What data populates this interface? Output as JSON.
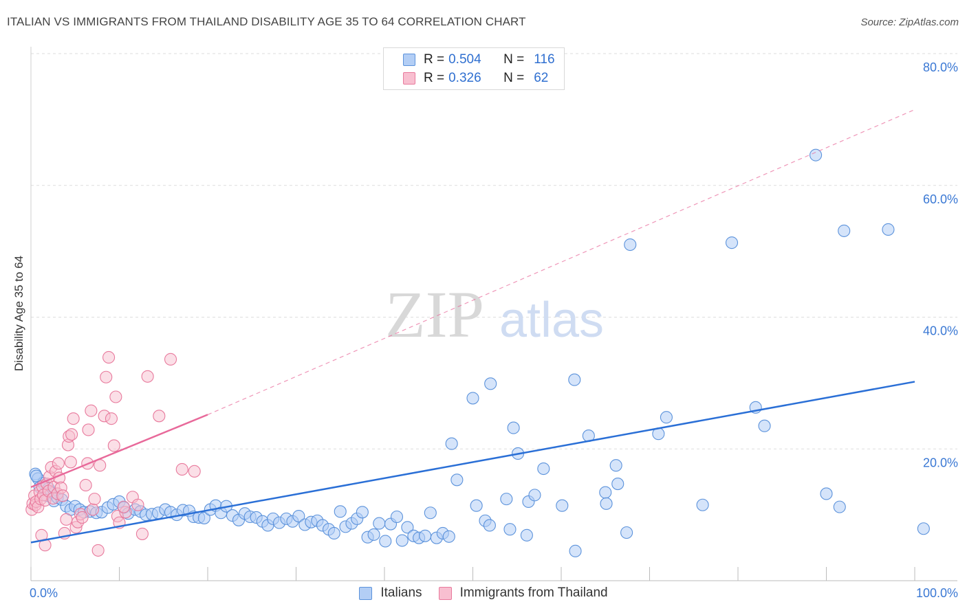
{
  "title": "ITALIAN VS IMMIGRANTS FROM THAILAND DISABILITY AGE 35 TO 64 CORRELATION CHART",
  "source": "Source: ZipAtlas.com",
  "watermark": {
    "zip": "ZIP",
    "atlas": "atlas"
  },
  "legend_stats": [
    {
      "r_label": "R =",
      "r_value": "0.504",
      "n_label": "N =",
      "n_value": "116"
    },
    {
      "r_label": "R =",
      "r_value": "0.326",
      "n_label": "N =",
      "n_value": "62"
    }
  ],
  "colors": {
    "italians_fill": "#b3cef5",
    "italians_stroke": "#5b92db",
    "italians_line": "#2a6fd6",
    "thai_fill": "#f8bfd0",
    "thai_stroke": "#e8799c",
    "thai_line": "#e8699a",
    "grid": "#dddddd",
    "tick_label": "#3a78d4"
  },
  "chart_data": {
    "type": "scatter",
    "title": "ITALIAN VS IMMIGRANTS FROM THAILAND DISABILITY AGE 35 TO 64 CORRELATION CHART",
    "xlabel": "",
    "ylabel": "Disability Age 35 to 64",
    "xlim": [
      0,
      100
    ],
    "ylim": [
      0,
      80
    ],
    "x_tick_labels": [
      "0.0%",
      "100.0%"
    ],
    "y_ticks": [
      20,
      40,
      60,
      80
    ],
    "y_tick_labels": [
      "20.0%",
      "40.0%",
      "60.0%",
      "80.0%"
    ],
    "grid": true,
    "legend_position": "top-center",
    "series": [
      {
        "name": "Italians",
        "trend": {
          "x0": 0,
          "y0": 5.8,
          "x1": 100,
          "y1": 30.2
        },
        "points": [
          [
            0.5,
            16.2
          ],
          [
            0.8,
            15.5
          ],
          [
            1,
            14.2
          ],
          [
            1.4,
            14.8
          ],
          [
            1.8,
            12.9
          ],
          [
            2,
            14.0
          ],
          [
            2.3,
            13.4
          ],
          [
            2.6,
            12.1
          ],
          [
            3,
            12.6
          ],
          [
            3.5,
            12.3
          ],
          [
            4,
            11.3
          ],
          [
            4.5,
            10.8
          ],
          [
            5,
            11.3
          ],
          [
            5.5,
            10.8
          ],
          [
            6,
            10.4
          ],
          [
            6.7,
            10.5
          ],
          [
            7.4,
            10.3
          ],
          [
            8,
            10.4
          ],
          [
            8.7,
            11.1
          ],
          [
            9.3,
            11.6
          ],
          [
            10,
            12.0
          ],
          [
            10.5,
            11.1
          ],
          [
            11,
            10.2
          ],
          [
            11.8,
            10.8
          ],
          [
            12.4,
            10.5
          ],
          [
            13,
            10.0
          ],
          [
            13.7,
            10.1
          ],
          [
            14.4,
            10.3
          ],
          [
            15.2,
            10.8
          ],
          [
            15.8,
            10.4
          ],
          [
            16.5,
            10.0
          ],
          [
            17.2,
            10.7
          ],
          [
            17.9,
            10.6
          ],
          [
            18.4,
            9.7
          ],
          [
            19,
            9.6
          ],
          [
            19.6,
            9.5
          ],
          [
            20.3,
            10.8
          ],
          [
            20.9,
            11.4
          ],
          [
            21.5,
            10.3
          ],
          [
            22.1,
            11.3
          ],
          [
            22.8,
            9.9
          ],
          [
            23.5,
            9.2
          ],
          [
            24.2,
            10.2
          ],
          [
            24.8,
            9.7
          ],
          [
            25.5,
            9.6
          ],
          [
            26.2,
            9.0
          ],
          [
            26.8,
            8.4
          ],
          [
            27.4,
            9.4
          ],
          [
            28.1,
            8.8
          ],
          [
            28.9,
            9.4
          ],
          [
            29.6,
            9.0
          ],
          [
            30.3,
            9.8
          ],
          [
            31,
            8.5
          ],
          [
            31.7,
            8.9
          ],
          [
            32.4,
            9.1
          ],
          [
            33,
            8.4
          ],
          [
            33.7,
            7.8
          ],
          [
            34.3,
            7.2
          ],
          [
            35,
            10.5
          ],
          [
            35.6,
            8.2
          ],
          [
            36.3,
            8.7
          ],
          [
            36.9,
            9.4
          ],
          [
            37.5,
            10.4
          ],
          [
            38.1,
            6.6
          ],
          [
            38.8,
            7.0
          ],
          [
            39.4,
            8.7
          ],
          [
            40.1,
            6.0
          ],
          [
            40.7,
            8.6
          ],
          [
            41.4,
            9.7
          ],
          [
            42,
            6.1
          ],
          [
            42.6,
            8.1
          ],
          [
            43.3,
            6.8
          ],
          [
            43.9,
            6.5
          ],
          [
            44.6,
            6.8
          ],
          [
            45.2,
            10.3
          ],
          [
            45.9,
            6.5
          ],
          [
            46.6,
            7.2
          ],
          [
            47.3,
            6.7
          ],
          [
            47.6,
            20.8
          ],
          [
            48.2,
            15.3
          ],
          [
            50,
            27.7
          ],
          [
            50.4,
            11.4
          ],
          [
            51.4,
            9.1
          ],
          [
            51.9,
            8.4
          ],
          [
            52,
            29.9
          ],
          [
            53.8,
            12.4
          ],
          [
            54.2,
            7.8
          ],
          [
            54.6,
            23.2
          ],
          [
            55.1,
            19.3
          ],
          [
            56.1,
            6.9
          ],
          [
            56.3,
            12.0
          ],
          [
            57,
            13.0
          ],
          [
            58,
            17.0
          ],
          [
            60.1,
            11.4
          ],
          [
            61.5,
            30.5
          ],
          [
            61.6,
            4.5
          ],
          [
            63.1,
            22.0
          ],
          [
            65,
            13.4
          ],
          [
            65.1,
            11.7
          ],
          [
            66.2,
            17.5
          ],
          [
            66.4,
            14.7
          ],
          [
            67.4,
            7.3
          ],
          [
            71,
            22.3
          ],
          [
            71.9,
            24.8
          ],
          [
            76,
            11.5
          ],
          [
            82,
            26.3
          ],
          [
            83,
            23.5
          ],
          [
            90,
            13.2
          ],
          [
            91.5,
            11.2
          ],
          [
            101,
            7.9
          ],
          [
            67.8,
            51.0
          ],
          [
            79.3,
            51.3
          ],
          [
            88.8,
            64.6
          ],
          [
            92,
            53.1
          ],
          [
            97,
            53.3
          ],
          [
            0.6,
            15.9
          ]
        ]
      },
      {
        "name": "Immigrants from Thailand",
        "trend": {
          "x0": 0,
          "y0": 14.2,
          "x1": 20,
          "y1": 25.2
        },
        "trend_ext": {
          "x0": 20,
          "y0": 25.2,
          "x1": 100,
          "y1": 71.5
        },
        "points": [
          [
            0.1,
            10.8
          ],
          [
            0.2,
            11.7
          ],
          [
            0.4,
            12.9
          ],
          [
            0.5,
            11.5
          ],
          [
            0.6,
            12.0
          ],
          [
            0.8,
            11.2
          ],
          [
            1,
            13.5
          ],
          [
            1.1,
            12.4
          ],
          [
            1.3,
            14.3
          ],
          [
            1.4,
            13.0
          ],
          [
            1.6,
            12.2
          ],
          [
            1.8,
            14.7
          ],
          [
            2,
            13.6
          ],
          [
            2.1,
            15.8
          ],
          [
            2.3,
            17.2
          ],
          [
            2.5,
            12.5
          ],
          [
            2.6,
            14.2
          ],
          [
            2.8,
            16.6
          ],
          [
            3,
            13.2
          ],
          [
            3.1,
            17.8
          ],
          [
            3.2,
            15.6
          ],
          [
            3.4,
            14.1
          ],
          [
            3.6,
            12.9
          ],
          [
            3.8,
            7.2
          ],
          [
            4,
            9.3
          ],
          [
            4.2,
            20.6
          ],
          [
            4.3,
            21.9
          ],
          [
            4.5,
            18.0
          ],
          [
            4.6,
            22.2
          ],
          [
            4.8,
            24.6
          ],
          [
            5.1,
            8.1
          ],
          [
            5.3,
            8.9
          ],
          [
            5.6,
            10.1
          ],
          [
            5.8,
            9.6
          ],
          [
            6.2,
            14.5
          ],
          [
            6.4,
            17.8
          ],
          [
            6.5,
            22.9
          ],
          [
            6.8,
            25.8
          ],
          [
            7,
            10.8
          ],
          [
            7.2,
            12.4
          ],
          [
            7.6,
            4.6
          ],
          [
            7.8,
            17.5
          ],
          [
            8.3,
            25.0
          ],
          [
            8.5,
            30.9
          ],
          [
            8.8,
            33.9
          ],
          [
            9.1,
            24.6
          ],
          [
            9.4,
            20.5
          ],
          [
            9.6,
            27.9
          ],
          [
            9.8,
            9.8
          ],
          [
            10,
            8.8
          ],
          [
            10.7,
            10.4
          ],
          [
            11.5,
            12.7
          ],
          [
            12.1,
            11.5
          ],
          [
            13.2,
            31.0
          ],
          [
            14.5,
            25.0
          ],
          [
            15.8,
            33.6
          ],
          [
            17.1,
            16.9
          ],
          [
            18.5,
            16.6
          ],
          [
            10.5,
            11.2
          ],
          [
            12.6,
            7.1
          ],
          [
            1.2,
            6.9
          ],
          [
            1.6,
            5.4
          ]
        ]
      }
    ]
  }
}
